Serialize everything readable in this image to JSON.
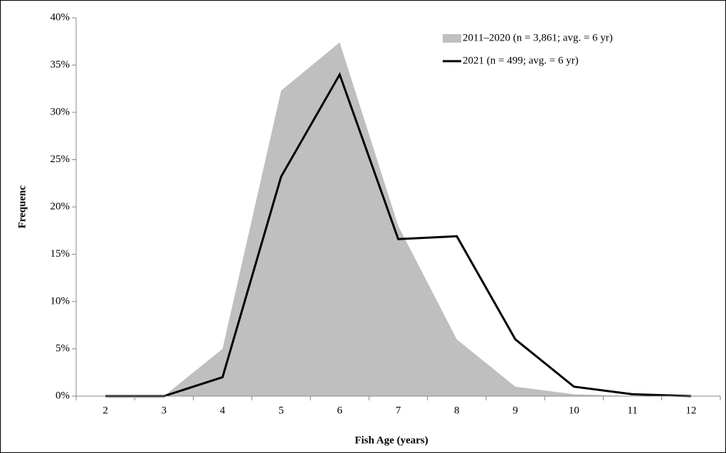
{
  "chart_data": {
    "type": "line",
    "x_label": "Fish Age  (years)",
    "y_label": "Frequenc",
    "categories": [
      "2",
      "3",
      "4",
      "5",
      "6",
      "7",
      "8",
      "9",
      "10",
      "11",
      "12"
    ],
    "series": [
      {
        "name": "2011–2020 (n = 3,861; avg. = 6 yr)",
        "type": "area",
        "color": "#bfbfbf",
        "values": [
          0,
          0,
          5,
          32.3,
          37.4,
          18,
          6,
          1,
          0.2,
          0,
          0
        ]
      },
      {
        "name": "2021 (n = 499; avg. = 6 yr)",
        "type": "line",
        "color": "#000000",
        "values": [
          0,
          0,
          2,
          23.2,
          34,
          16.6,
          16.9,
          6,
          1,
          0.2,
          0
        ]
      }
    ],
    "ylim": [
      0,
      40
    ],
    "yticks": [
      {
        "value": 0,
        "label": "0%"
      },
      {
        "value": 5,
        "label": "5%"
      },
      {
        "value": 10,
        "label": "10%"
      },
      {
        "value": 15,
        "label": "15%"
      },
      {
        "value": 20,
        "label": "20%"
      },
      {
        "value": 25,
        "label": "25%"
      },
      {
        "value": 30,
        "label": "30%"
      },
      {
        "value": 35,
        "label": "35%"
      },
      {
        "value": 40,
        "label": "40%"
      }
    ],
    "legend": "top-right"
  }
}
